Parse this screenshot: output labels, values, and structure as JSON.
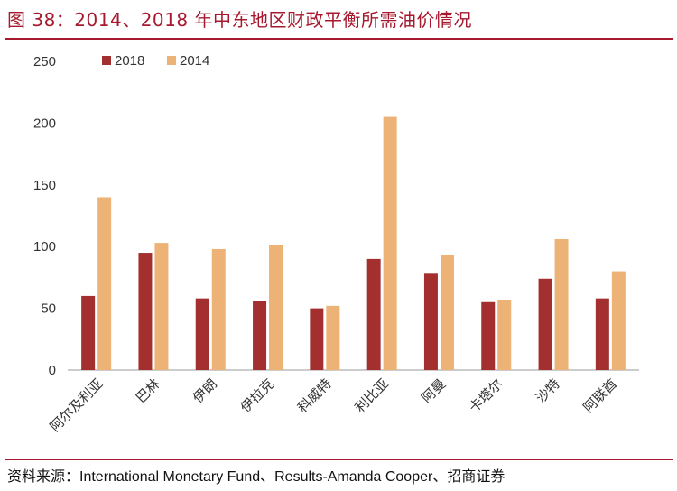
{
  "header": {
    "title": "图 38：2014、2018 年中东地区财政平衡所需油价情况"
  },
  "footer": {
    "source": "资料来源：International Monetary Fund、Results-Amanda Cooper、招商证券"
  },
  "colors": {
    "brand": "#a6192e",
    "series_2018": "#a3302f",
    "series_2014": "#edb275",
    "axis": "#999999",
    "text": "#333333"
  },
  "chart_data": {
    "type": "bar",
    "categories": [
      "阿尔及利亚",
      "巴林",
      "伊朗",
      "伊拉克",
      "科威特",
      "利比亚",
      "阿曼",
      "卡塔尔",
      "沙特",
      "阿联酋"
    ],
    "series": [
      {
        "name": "2018",
        "values": [
          60,
          95,
          58,
          56,
          50,
          90,
          78,
          55,
          74,
          58
        ]
      },
      {
        "name": "2014",
        "values": [
          140,
          103,
          98,
          101,
          52,
          205,
          93,
          57,
          106,
          80
        ]
      }
    ],
    "yticks": [
      "0",
      "50",
      "100",
      "150",
      "200",
      "250"
    ],
    "ylim": [
      0,
      250
    ],
    "grid": false,
    "legend_position": "top-left"
  }
}
